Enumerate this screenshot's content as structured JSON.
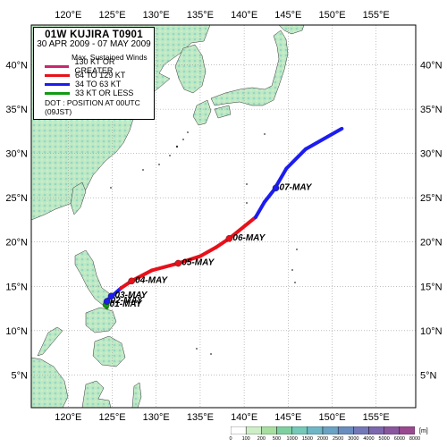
{
  "legend": {
    "title": "01W  KUJIRA  T0901",
    "period": "30 APR 2009 - 07 MAY 2009",
    "subtitle": "Max. Sustained Winds",
    "items": [
      {
        "label": "130 KT OR GREATER",
        "color": "#c8286e"
      },
      {
        "label": "64 TO 129 KT",
        "color": "#e8101a"
      },
      {
        "label": "34 TO 63 KT",
        "color": "#1c1cf0"
      },
      {
        "label": "33 KT OR LESS",
        "color": "#129a12"
      }
    ],
    "dot_note": "DOT : POSITION AT 00UTC (09JST)"
  },
  "axes": {
    "lon_labels": [
      "120°E",
      "125°E",
      "130°E",
      "135°E",
      "140°E",
      "145°E",
      "150°E",
      "155°E"
    ],
    "lat_labels": [
      "5°N",
      "10°N",
      "15°N",
      "20°N",
      "25°N",
      "30°N",
      "35°N",
      "40°N"
    ],
    "lon_values": [
      120,
      125,
      130,
      135,
      140,
      145,
      150,
      155
    ],
    "lat_values": [
      5,
      10,
      15,
      20,
      25,
      30,
      35,
      40
    ],
    "lon_range": [
      115.8,
      159.5
    ],
    "lat_range": [
      1.3,
      44.5
    ],
    "grid": true
  },
  "track": {
    "points": [
      {
        "lon": 124.4,
        "lat": 12.6,
        "cat": "ts_weak"
      },
      {
        "lon": 124.2,
        "lat": 13.0,
        "cat": "ts_weak"
      },
      {
        "lon": 124.3,
        "lat": 13.3,
        "cat": "ts_weak"
      },
      {
        "lon": 124.5,
        "lat": 13.5,
        "cat": "ts"
      },
      {
        "lon": 125.1,
        "lat": 14.0,
        "cat": "ts"
      },
      {
        "lon": 126.0,
        "lat": 14.8,
        "cat": "ts"
      },
      {
        "lon": 127.2,
        "lat": 15.6,
        "cat": "ty"
      },
      {
        "lon": 129.5,
        "lat": 16.8,
        "cat": "ty"
      },
      {
        "lon": 132.5,
        "lat": 17.6,
        "cat": "ty"
      },
      {
        "lon": 135.0,
        "lat": 18.4,
        "cat": "ty"
      },
      {
        "lon": 136.8,
        "lat": 19.4,
        "cat": "ty"
      },
      {
        "lon": 138.3,
        "lat": 20.4,
        "cat": "ty"
      },
      {
        "lon": 141.3,
        "lat": 22.8,
        "cat": "ty"
      },
      {
        "lon": 142.3,
        "lat": 24.5,
        "cat": "ts"
      },
      {
        "lon": 143.4,
        "lat": 25.9,
        "cat": "ts"
      },
      {
        "lon": 144.8,
        "lat": 28.3,
        "cat": "ts"
      },
      {
        "lon": 147.0,
        "lat": 30.5,
        "cat": "ts"
      },
      {
        "lon": 151.1,
        "lat": 32.8,
        "cat": "ts"
      }
    ],
    "daily_positions": [
      {
        "label": "01-MAY",
        "lon": 124.3,
        "lat": 12.9,
        "cat": "ts_weak"
      },
      {
        "label": "02-MAY",
        "lon": 124.4,
        "lat": 13.3,
        "cat": "ts"
      },
      {
        "label": "03-MAY",
        "lon": 124.9,
        "lat": 13.9,
        "cat": "ts"
      },
      {
        "label": "04-MAY",
        "lon": 127.2,
        "lat": 15.6,
        "cat": "ty"
      },
      {
        "label": "05-MAY",
        "lon": 132.5,
        "lat": 17.6,
        "cat": "ty"
      },
      {
        "label": "06-MAY",
        "lon": 138.3,
        "lat": 20.4,
        "cat": "ty"
      },
      {
        "label": "07-MAY",
        "lon": 143.6,
        "lat": 26.1,
        "cat": "ts"
      }
    ]
  },
  "elevation_scale": {
    "labels": [
      "0",
      "100",
      "200",
      "500",
      "1000",
      "1500",
      "2000",
      "2500",
      "3000",
      "4000",
      "5000",
      "6000",
      "8000"
    ],
    "unit": "[m]",
    "colors": [
      "#ffffff",
      "#cdeec6",
      "#a6dfa0",
      "#7fd0a0",
      "#74c9b8",
      "#6fb7c6",
      "#6aa2c4",
      "#6a8dbf",
      "#7378b8",
      "#7d67ad",
      "#8a579f",
      "#9a4991"
    ]
  },
  "colors": {
    "ocean": "#ffffff",
    "land": "#b8e7c2",
    "land_high": "#8dd6c3",
    "coast": "#333333",
    "grid": "#9a9a9a"
  }
}
